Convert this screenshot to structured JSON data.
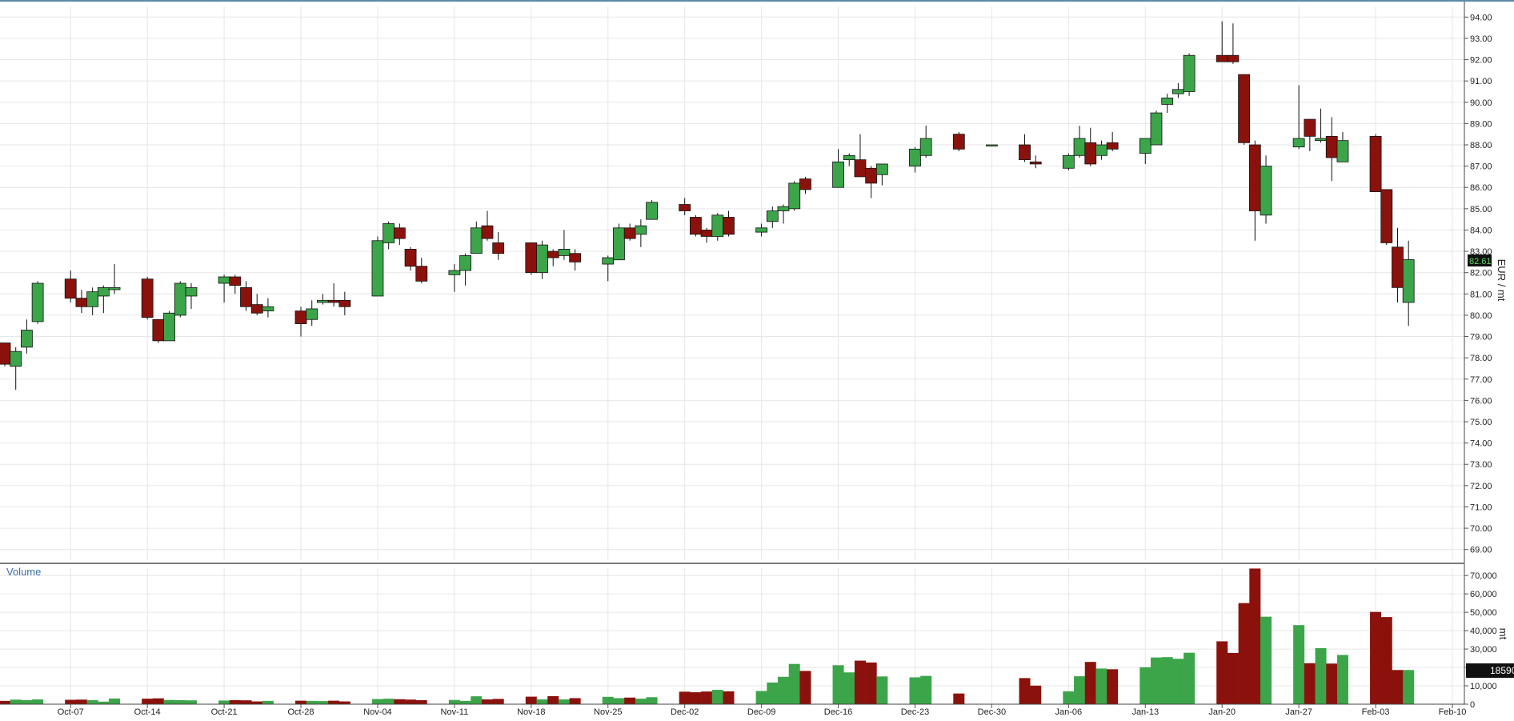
{
  "chart_data": {
    "type": "candlestick",
    "y_axis_label": "EUR / mt",
    "volume_label": "Volume",
    "volume_axis_label": "mt",
    "last_price_label": "82.61",
    "last_volume_label": "18590",
    "price_ylim": [
      68.5,
      94.5
    ],
    "volume_ylim": [
      0,
      74000
    ],
    "price_ticks": [
      "69.00",
      "70.00",
      "71.00",
      "72.00",
      "73.00",
      "74.00",
      "75.00",
      "76.00",
      "77.00",
      "78.00",
      "79.00",
      "80.00",
      "81.00",
      "82.00",
      "83.00",
      "84.00",
      "85.00",
      "86.00",
      "87.00",
      "88.00",
      "89.00",
      "90.00",
      "91.00",
      "92.00",
      "93.00",
      "94.00"
    ],
    "volume_ticks": [
      "0",
      "10,000",
      "20,000",
      "30,000",
      "40,000",
      "50,000",
      "60,000",
      "70,000"
    ],
    "x_ticks": [
      {
        "label": "Oct-07",
        "date": "2019-10-07"
      },
      {
        "label": "Oct-14",
        "date": "2019-10-14"
      },
      {
        "label": "Oct-21",
        "date": "2019-10-21"
      },
      {
        "label": "Oct-28",
        "date": "2019-10-28"
      },
      {
        "label": "Nov-04",
        "date": "2019-11-04"
      },
      {
        "label": "Nov-11",
        "date": "2019-11-11"
      },
      {
        "label": "Nov-18",
        "date": "2019-11-18"
      },
      {
        "label": "Nov-25",
        "date": "2019-11-25"
      },
      {
        "label": "Dec-02",
        "date": "2019-12-02"
      },
      {
        "label": "Dec-09",
        "date": "2019-12-09"
      },
      {
        "label": "Dec-16",
        "date": "2019-12-16"
      },
      {
        "label": "Dec-23",
        "date": "2019-12-23"
      },
      {
        "label": "Dec-30",
        "date": "2019-12-30"
      },
      {
        "label": "Jan-06",
        "date": "2020-01-06"
      },
      {
        "label": "Jan-13",
        "date": "2020-01-13"
      },
      {
        "label": "Jan-20",
        "date": "2020-01-20"
      },
      {
        "label": "Jan-27",
        "date": "2020-01-27"
      },
      {
        "label": "Feb-03",
        "date": "2020-02-03"
      },
      {
        "label": "Feb-10",
        "date": "2020-02-10"
      }
    ],
    "candles": [
      {
        "date": "2019-10-01",
        "open": 78.7,
        "high": 78.7,
        "low": 77.6,
        "close": 77.7,
        "volume": 1800
      },
      {
        "date": "2019-10-02",
        "open": 77.6,
        "high": 78.5,
        "low": 76.5,
        "close": 78.3,
        "volume": 2500
      },
      {
        "date": "2019-10-03",
        "open": 78.5,
        "high": 79.8,
        "low": 78.2,
        "close": 79.3,
        "volume": 2200
      },
      {
        "date": "2019-10-04",
        "open": 79.7,
        "high": 81.6,
        "low": 79.6,
        "close": 81.5,
        "volume": 2600
      },
      {
        "date": "2019-10-07",
        "open": 81.7,
        "high": 82.1,
        "low": 80.6,
        "close": 80.8,
        "volume": 2400
      },
      {
        "date": "2019-10-08",
        "open": 80.8,
        "high": 81.2,
        "low": 80.1,
        "close": 80.4,
        "volume": 2500
      },
      {
        "date": "2019-10-09",
        "open": 80.4,
        "high": 81.3,
        "low": 80.0,
        "close": 81.1,
        "volume": 2200
      },
      {
        "date": "2019-10-10",
        "open": 80.9,
        "high": 81.4,
        "low": 80.1,
        "close": 81.3,
        "volume": 1400
      },
      {
        "date": "2019-10-11",
        "open": 81.2,
        "high": 82.4,
        "low": 81.0,
        "close": 81.3,
        "volume": 3100
      },
      {
        "date": "2019-10-14",
        "open": 81.7,
        "high": 81.8,
        "low": 79.8,
        "close": 79.9,
        "volume": 3000
      },
      {
        "date": "2019-10-15",
        "open": 79.8,
        "high": 79.8,
        "low": 78.7,
        "close": 78.8,
        "volume": 3200
      },
      {
        "date": "2019-10-16",
        "open": 78.8,
        "high": 80.2,
        "low": 78.8,
        "close": 80.1,
        "volume": 2300
      },
      {
        "date": "2019-10-17",
        "open": 80.0,
        "high": 81.6,
        "low": 79.9,
        "close": 81.5,
        "volume": 2200
      },
      {
        "date": "2019-10-18",
        "open": 80.9,
        "high": 81.5,
        "low": 80.3,
        "close": 81.3,
        "volume": 2100
      },
      {
        "date": "2019-10-21",
        "open": 81.5,
        "high": 81.9,
        "low": 80.6,
        "close": 81.8,
        "volume": 2000
      },
      {
        "date": "2019-10-22",
        "open": 81.8,
        "high": 81.9,
        "low": 81.0,
        "close": 81.4,
        "volume": 2200
      },
      {
        "date": "2019-10-23",
        "open": 81.3,
        "high": 81.6,
        "low": 80.2,
        "close": 80.4,
        "volume": 2100
      },
      {
        "date": "2019-10-24",
        "open": 80.5,
        "high": 81.0,
        "low": 80.0,
        "close": 80.1,
        "volume": 1500
      },
      {
        "date": "2019-10-25",
        "open": 80.2,
        "high": 80.8,
        "low": 79.9,
        "close": 80.4,
        "volume": 1800
      },
      {
        "date": "2019-10-28",
        "open": 80.2,
        "high": 80.4,
        "low": 79.0,
        "close": 79.6,
        "volume": 1900
      },
      {
        "date": "2019-10-29",
        "open": 79.8,
        "high": 80.7,
        "low": 79.5,
        "close": 80.3,
        "volume": 1800
      },
      {
        "date": "2019-10-30",
        "open": 80.6,
        "high": 81.0,
        "low": 80.5,
        "close": 80.7,
        "volume": 1700
      },
      {
        "date": "2019-10-31",
        "open": 80.7,
        "high": 81.5,
        "low": 80.4,
        "close": 80.6,
        "volume": 1900
      },
      {
        "date": "2019-11-01",
        "open": 80.7,
        "high": 81.1,
        "low": 80.0,
        "close": 80.4,
        "volume": 1500
      },
      {
        "date": "2019-11-04",
        "open": 80.9,
        "high": 83.7,
        "low": 80.9,
        "close": 83.5,
        "volume": 2800
      },
      {
        "date": "2019-11-05",
        "open": 83.4,
        "high": 84.4,
        "low": 83.1,
        "close": 84.3,
        "volume": 3000
      },
      {
        "date": "2019-11-06",
        "open": 84.1,
        "high": 84.3,
        "low": 83.3,
        "close": 83.6,
        "volume": 2700
      },
      {
        "date": "2019-11-07",
        "open": 83.1,
        "high": 83.2,
        "low": 82.1,
        "close": 82.3,
        "volume": 2500
      },
      {
        "date": "2019-11-08",
        "open": 82.3,
        "high": 82.7,
        "low": 81.5,
        "close": 81.6,
        "volume": 2200
      },
      {
        "date": "2019-11-11",
        "open": 81.9,
        "high": 82.4,
        "low": 81.1,
        "close": 82.1,
        "volume": 2300
      },
      {
        "date": "2019-11-12",
        "open": 82.1,
        "high": 82.9,
        "low": 81.4,
        "close": 82.8,
        "volume": 1800
      },
      {
        "date": "2019-11-13",
        "open": 82.9,
        "high": 84.4,
        "low": 82.9,
        "close": 84.1,
        "volume": 4300
      },
      {
        "date": "2019-11-14",
        "open": 84.2,
        "high": 84.9,
        "low": 83.5,
        "close": 83.6,
        "volume": 2600
      },
      {
        "date": "2019-11-15",
        "open": 83.4,
        "high": 83.9,
        "low": 82.6,
        "close": 82.9,
        "volume": 2900
      },
      {
        "date": "2019-11-18",
        "open": 83.4,
        "high": 83.4,
        "low": 81.9,
        "close": 82.0,
        "volume": 4100
      },
      {
        "date": "2019-11-19",
        "open": 82.0,
        "high": 83.5,
        "low": 81.7,
        "close": 83.3,
        "volume": 2600
      },
      {
        "date": "2019-11-20",
        "open": 83.0,
        "high": 83.1,
        "low": 82.3,
        "close": 82.7,
        "volume": 4400
      },
      {
        "date": "2019-11-21",
        "open": 82.8,
        "high": 84.0,
        "low": 82.6,
        "close": 83.1,
        "volume": 2600
      },
      {
        "date": "2019-11-22",
        "open": 82.9,
        "high": 83.1,
        "low": 82.1,
        "close": 82.5,
        "volume": 3300
      },
      {
        "date": "2019-11-25",
        "open": 82.4,
        "high": 82.8,
        "low": 81.6,
        "close": 82.7,
        "volume": 4000
      },
      {
        "date": "2019-11-26",
        "open": 82.6,
        "high": 84.3,
        "low": 82.6,
        "close": 84.1,
        "volume": 3300
      },
      {
        "date": "2019-11-27",
        "open": 84.1,
        "high": 84.3,
        "low": 83.5,
        "close": 83.6,
        "volume": 3600
      },
      {
        "date": "2019-11-28",
        "open": 83.8,
        "high": 84.5,
        "low": 83.2,
        "close": 84.2,
        "volume": 3000
      },
      {
        "date": "2019-11-29",
        "open": 84.5,
        "high": 85.4,
        "low": 84.5,
        "close": 85.3,
        "volume": 3800
      },
      {
        "date": "2019-12-02",
        "open": 85.2,
        "high": 85.5,
        "low": 84.7,
        "close": 84.9,
        "volume": 6800
      },
      {
        "date": "2019-12-03",
        "open": 84.6,
        "high": 84.7,
        "low": 83.7,
        "close": 83.8,
        "volume": 6500
      },
      {
        "date": "2019-12-04",
        "open": 84.0,
        "high": 84.1,
        "low": 83.4,
        "close": 83.7,
        "volume": 6900
      },
      {
        "date": "2019-12-05",
        "open": 83.7,
        "high": 84.8,
        "low": 83.5,
        "close": 84.7,
        "volume": 7800
      },
      {
        "date": "2019-12-06",
        "open": 84.6,
        "high": 84.9,
        "low": 83.7,
        "close": 83.8,
        "volume": 7000
      },
      {
        "date": "2019-12-09",
        "open": 83.9,
        "high": 84.3,
        "low": 83.7,
        "close": 84.1,
        "volume": 7200
      },
      {
        "date": "2019-12-10",
        "open": 84.4,
        "high": 85.1,
        "low": 84.1,
        "close": 84.9,
        "volume": 11800
      },
      {
        "date": "2019-12-11",
        "open": 84.9,
        "high": 85.2,
        "low": 84.3,
        "close": 85.1,
        "volume": 14900
      },
      {
        "date": "2019-12-12",
        "open": 85.0,
        "high": 86.3,
        "low": 84.9,
        "close": 86.2,
        "volume": 21900
      },
      {
        "date": "2019-12-13",
        "open": 86.4,
        "high": 86.5,
        "low": 85.7,
        "close": 85.9,
        "volume": 18100
      },
      {
        "date": "2019-12-16",
        "open": 86.0,
        "high": 87.8,
        "low": 86.0,
        "close": 87.2,
        "volume": 21200
      },
      {
        "date": "2019-12-17",
        "open": 87.3,
        "high": 87.6,
        "low": 87.0,
        "close": 87.5,
        "volume": 17300
      },
      {
        "date": "2019-12-18",
        "open": 87.3,
        "high": 88.5,
        "low": 86.5,
        "close": 86.5,
        "volume": 23700
      },
      {
        "date": "2019-12-19",
        "open": 86.9,
        "high": 87.0,
        "low": 85.5,
        "close": 86.2,
        "volume": 22700
      },
      {
        "date": "2019-12-20",
        "open": 86.6,
        "high": 87.0,
        "low": 86.1,
        "close": 87.1,
        "volume": 15100
      },
      {
        "date": "2019-12-23",
        "open": 87.0,
        "high": 87.9,
        "low": 86.7,
        "close": 87.8,
        "volume": 14600
      },
      {
        "date": "2019-12-24",
        "open": 87.5,
        "high": 88.9,
        "low": 87.4,
        "close": 88.3,
        "volume": 15400
      },
      {
        "date": "2019-12-27",
        "open": 88.5,
        "high": 88.6,
        "low": 87.7,
        "close": 87.8,
        "volume": 5800
      },
      {
        "date": "2019-12-30",
        "open": 88.0,
        "high": 88.0,
        "low": 88.0,
        "close": 88.0,
        "volume": 0
      },
      {
        "date": "2020-01-02",
        "open": 88.0,
        "high": 88.5,
        "low": 87.2,
        "close": 87.3,
        "volume": 14200
      },
      {
        "date": "2020-01-03",
        "open": 87.2,
        "high": 87.5,
        "low": 86.9,
        "close": 87.1,
        "volume": 10100
      },
      {
        "date": "2020-01-06",
        "open": 86.9,
        "high": 87.6,
        "low": 86.8,
        "close": 87.5,
        "volume": 7000
      },
      {
        "date": "2020-01-07",
        "open": 87.5,
        "high": 88.9,
        "low": 87.4,
        "close": 88.3,
        "volume": 15200
      },
      {
        "date": "2020-01-08",
        "open": 88.1,
        "high": 88.8,
        "low": 87.0,
        "close": 87.1,
        "volume": 23000
      },
      {
        "date": "2020-01-09",
        "open": 87.5,
        "high": 88.2,
        "low": 87.3,
        "close": 88.0,
        "volume": 19400
      },
      {
        "date": "2020-01-10",
        "open": 88.1,
        "high": 88.6,
        "low": 87.7,
        "close": 87.8,
        "volume": 19000
      },
      {
        "date": "2020-01-13",
        "open": 87.6,
        "high": 88.3,
        "low": 87.1,
        "close": 88.3,
        "volume": 20100
      },
      {
        "date": "2020-01-14",
        "open": 88.0,
        "high": 89.6,
        "low": 88.0,
        "close": 89.5,
        "volume": 25400
      },
      {
        "date": "2020-01-15",
        "open": 89.9,
        "high": 90.4,
        "low": 89.5,
        "close": 90.2,
        "volume": 25600
      },
      {
        "date": "2020-01-16",
        "open": 90.4,
        "high": 90.9,
        "low": 90.2,
        "close": 90.6,
        "volume": 24700
      },
      {
        "date": "2020-01-17",
        "open": 90.5,
        "high": 92.3,
        "low": 90.3,
        "close": 92.2,
        "volume": 28000
      },
      {
        "date": "2020-01-20",
        "open": 92.2,
        "high": 93.8,
        "low": 91.9,
        "close": 91.9,
        "volume": 34200
      },
      {
        "date": "2020-01-21",
        "open": 92.2,
        "high": 93.7,
        "low": 91.8,
        "close": 91.9,
        "volume": 27900
      },
      {
        "date": "2020-01-22",
        "open": 91.3,
        "high": 91.3,
        "low": 88.0,
        "close": 88.1,
        "volume": 55000
      },
      {
        "date": "2020-01-23",
        "open": 88.0,
        "high": 88.2,
        "low": 83.5,
        "close": 84.9,
        "volume": 73800
      },
      {
        "date": "2020-01-24",
        "open": 84.7,
        "high": 87.5,
        "low": 84.3,
        "close": 87.0,
        "volume": 47600
      },
      {
        "date": "2020-01-27",
        "open": 87.9,
        "high": 90.8,
        "low": 87.8,
        "close": 88.3,
        "volume": 43000
      },
      {
        "date": "2020-01-28",
        "open": 89.2,
        "high": 89.2,
        "low": 87.7,
        "close": 88.4,
        "volume": 22300
      },
      {
        "date": "2020-01-29",
        "open": 88.2,
        "high": 89.7,
        "low": 88.1,
        "close": 88.3,
        "volume": 30500
      },
      {
        "date": "2020-01-30",
        "open": 88.4,
        "high": 89.3,
        "low": 86.3,
        "close": 87.4,
        "volume": 22100
      },
      {
        "date": "2020-01-31",
        "open": 87.2,
        "high": 88.6,
        "low": 87.2,
        "close": 88.2,
        "volume": 26800
      },
      {
        "date": "2020-02-03",
        "open": 88.4,
        "high": 88.5,
        "low": 85.8,
        "close": 85.8,
        "volume": 50200
      },
      {
        "date": "2020-02-04",
        "open": 85.9,
        "high": 85.9,
        "low": 83.3,
        "close": 83.4,
        "volume": 47400
      },
      {
        "date": "2020-02-05",
        "open": 83.2,
        "high": 84.1,
        "low": 80.6,
        "close": 81.3,
        "volume": 18590
      },
      {
        "date": "2020-02-06",
        "open": 80.6,
        "high": 83.5,
        "low": 79.5,
        "close": 82.61,
        "volume": 18590
      }
    ],
    "colors": {
      "up": "#3ca54a",
      "down": "#8b120c",
      "grid": "#e6e6e6",
      "axis": "#333333"
    }
  }
}
